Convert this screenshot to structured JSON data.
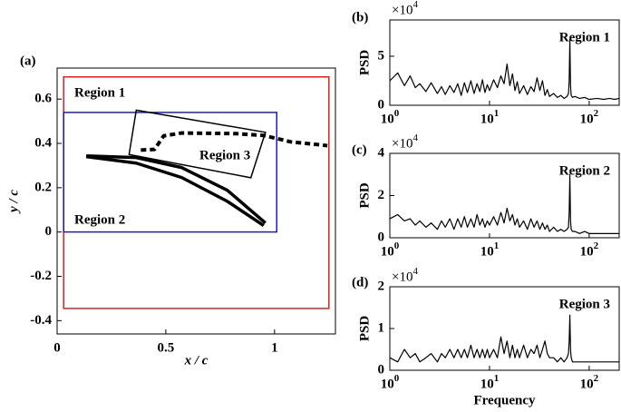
{
  "chart_data": [
    {
      "type": "line",
      "label": "(a)",
      "xlabel": "x / c",
      "ylabel": "y / c",
      "xlim": [
        0,
        1.28
      ],
      "ylim": [
        -0.46,
        0.74
      ],
      "xticks": [
        0,
        0.5,
        1
      ],
      "yticks": [
        -0.4,
        -0.2,
        0,
        0.2,
        0.4,
        0.6
      ],
      "regions": [
        {
          "label": "Region 1",
          "color": "#e02020",
          "x": [
            0.03,
            1.25,
            1.25,
            0.03
          ],
          "y": [
            0.7,
            0.7,
            -0.345,
            -0.345
          ]
        },
        {
          "label": "Region 2",
          "color": "#1a1ad0",
          "x": [
            0.03,
            1.01,
            1.01,
            0.03
          ],
          "y": [
            0.54,
            0.54,
            0,
            0
          ]
        },
        {
          "label": "Region 3",
          "color": "#000000",
          "x": [
            0.364,
            0.958,
            0.891,
            0.331
          ],
          "y": [
            0.55,
            0.45,
            0.245,
            0.35
          ]
        }
      ],
      "series": [
        {
          "color": "#000000",
          "linestyle": "solid",
          "x": [
            0.134,
            0.364,
            0.573,
            0.782,
            0.958
          ],
          "y": [
            0.344,
            0.336,
            0.291,
            0.189,
            0.041
          ]
        },
        {
          "color": "#000000",
          "linestyle": "solid",
          "x": [
            0.134,
            0.364,
            0.573,
            0.782,
            0.95
          ],
          "y": [
            0.34,
            0.311,
            0.246,
            0.139,
            0.029
          ]
        },
        {
          "color": "#000000",
          "linestyle": "dashed",
          "x": [
            0.385,
            0.448,
            0.49,
            0.573,
            0.824,
            0.95,
            1.075,
            1.243
          ],
          "y": [
            0.37,
            0.373,
            0.434,
            0.447,
            0.444,
            0.436,
            0.407,
            0.39
          ]
        }
      ]
    },
    {
      "type": "line",
      "label": "(b)",
      "annotation": "Region 1",
      "ylabel": "PSD",
      "multiplier": "×10^4",
      "xscale": "log",
      "xlim": [
        1,
        200
      ],
      "ylim": [
        0,
        8.7
      ],
      "xticks": [
        {
          "value": 1,
          "label": "10^0"
        },
        {
          "value": 10,
          "label": "10^1"
        },
        {
          "value": 100,
          "label": "10^2"
        }
      ],
      "yticks": [
        0,
        5
      ],
      "x": [
        1,
        1.2,
        1.4,
        1.6,
        1.8,
        2,
        2.3,
        2.6,
        3,
        3.3,
        3.6,
        4,
        4.4,
        4.8,
        5.2,
        5.6,
        6,
        6.5,
        7,
        7.5,
        8,
        8.5,
        9,
        9.5,
        10,
        11,
        12,
        13,
        14,
        15,
        16,
        17,
        18,
        19,
        20,
        22,
        24,
        26,
        28,
        30,
        32,
        34,
        36,
        38,
        40,
        44,
        48,
        52,
        56,
        60,
        62,
        63,
        64,
        65,
        66,
        68,
        72,
        80,
        90,
        100,
        120,
        140,
        160,
        180,
        200
      ],
      "series": [
        {
          "color": "#000000",
          "values": [
            2.5,
            3.3,
            2.0,
            3.0,
            1.8,
            2.2,
            1.4,
            2.3,
            1.2,
            1.9,
            1.1,
            2.0,
            1.3,
            2.2,
            1.0,
            2.3,
            1.3,
            2.5,
            1.2,
            2.2,
            1.4,
            2.6,
            1.3,
            2.1,
            1.5,
            2.6,
            1.8,
            3.0,
            2.2,
            4.2,
            2.0,
            3.2,
            1.5,
            2.4,
            1.2,
            2.0,
            1.1,
            1.9,
            1.4,
            2.8,
            1.5,
            2.5,
            1.0,
            1.6,
            0.9,
            1.2,
            0.8,
            1.0,
            0.7,
            0.9,
            1.2,
            2.5,
            6.7,
            2.0,
            1.0,
            0.8,
            0.9,
            0.7,
            0.8,
            0.6,
            0.7,
            0.6,
            0.7,
            0.6,
            0.7
          ]
        }
      ]
    },
    {
      "type": "line",
      "label": "(c)",
      "annotation": "Region 2",
      "ylabel": "PSD",
      "multiplier": "×10^4",
      "xscale": "log",
      "xlim": [
        1,
        200
      ],
      "ylim": [
        0,
        4
      ],
      "xticks": [
        {
          "value": 1,
          "label": "10^0"
        },
        {
          "value": 10,
          "label": "10^1"
        },
        {
          "value": 100,
          "label": "10^2"
        }
      ],
      "yticks": [
        0,
        2,
        4
      ],
      "x": [
        1,
        1.2,
        1.4,
        1.6,
        1.8,
        2,
        2.3,
        2.6,
        3,
        3.3,
        3.6,
        4,
        4.4,
        4.8,
        5.2,
        5.6,
        6,
        6.5,
        7,
        7.5,
        8,
        8.5,
        9,
        9.5,
        10,
        11,
        12,
        13,
        14,
        15,
        16,
        17,
        18,
        19,
        20,
        22,
        24,
        26,
        28,
        30,
        32,
        34,
        36,
        38,
        40,
        44,
        48,
        52,
        56,
        60,
        62,
        63,
        64,
        65,
        66,
        68,
        72,
        80,
        90,
        100,
        120,
        140,
        160,
        180,
        200
      ],
      "series": [
        {
          "color": "#000000",
          "values": [
            0.9,
            1.1,
            0.8,
            0.9,
            0.6,
            0.8,
            0.5,
            0.7,
            0.4,
            0.8,
            0.5,
            0.9,
            0.4,
            0.9,
            0.5,
            1.0,
            0.5,
            0.9,
            0.5,
            1.1,
            0.6,
            0.9,
            0.5,
            0.8,
            0.6,
            1.0,
            0.6,
            1.2,
            0.7,
            1.4,
            0.8,
            1.1,
            0.6,
            0.9,
            0.5,
            0.8,
            0.4,
            0.9,
            0.5,
            0.8,
            0.4,
            0.7,
            0.4,
            0.6,
            0.3,
            0.5,
            0.3,
            0.4,
            0.3,
            0.4,
            0.5,
            1.2,
            3.0,
            0.8,
            0.4,
            0.3,
            0.3,
            0.2,
            0.3,
            0.2,
            0.2,
            0.2,
            0.2,
            0.2,
            0.2
          ]
        }
      ]
    },
    {
      "type": "line",
      "label": "(d)",
      "annotation": "Region 3",
      "ylabel": "PSD",
      "xlabel": "Frequency",
      "multiplier": "×10^4",
      "xscale": "log",
      "xlim": [
        1,
        200
      ],
      "ylim": [
        0,
        2
      ],
      "xticks": [
        {
          "value": 1,
          "label": "10^0"
        },
        {
          "value": 10,
          "label": "10^1"
        },
        {
          "value": 100,
          "label": "10^2"
        }
      ],
      "yticks": [
        0,
        1,
        2
      ],
      "x": [
        1,
        1.2,
        1.4,
        1.6,
        1.8,
        2,
        2.3,
        2.6,
        3,
        3.3,
        3.6,
        4,
        4.4,
        4.8,
        5.2,
        5.6,
        6,
        6.5,
        7,
        7.5,
        8,
        8.5,
        9,
        9.5,
        10,
        11,
        12,
        13,
        14,
        15,
        16,
        17,
        18,
        19,
        20,
        22,
        24,
        26,
        28,
        30,
        32,
        34,
        36,
        38,
        40,
        44,
        48,
        52,
        56,
        60,
        62,
        63,
        64,
        65,
        66,
        68,
        72,
        80,
        90,
        100,
        120,
        140,
        160,
        180,
        200
      ],
      "series": [
        {
          "color": "#000000",
          "values": [
            0.3,
            0.2,
            0.5,
            0.3,
            0.4,
            0.2,
            0.3,
            0.4,
            0.2,
            0.4,
            0.3,
            0.5,
            0.3,
            0.5,
            0.3,
            0.5,
            0.3,
            0.6,
            0.3,
            0.5,
            0.3,
            0.5,
            0.3,
            0.5,
            0.3,
            0.5,
            0.3,
            0.8,
            0.4,
            0.7,
            0.3,
            0.6,
            0.3,
            0.5,
            0.3,
            0.6,
            0.3,
            0.5,
            0.4,
            0.6,
            0.3,
            0.5,
            0.7,
            0.4,
            0.3,
            0.3,
            0.2,
            0.3,
            0.2,
            0.3,
            0.4,
            0.7,
            1.32,
            0.5,
            0.3,
            0.2,
            0.2,
            0.2,
            0.2,
            0.2,
            0.2,
            0.2,
            0.2,
            0.2,
            0.2
          ]
        }
      ]
    }
  ]
}
